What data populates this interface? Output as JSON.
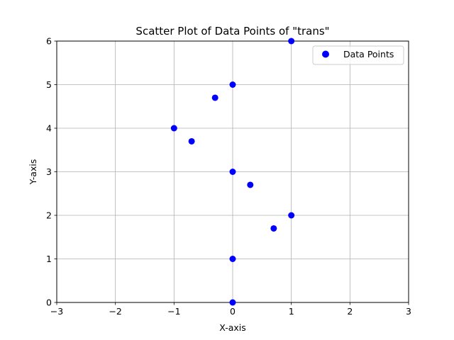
{
  "chart_data": {
    "type": "scatter",
    "title": "Scatter Plot of Data Points of \"trans\"",
    "xlabel": "X-axis",
    "ylabel": "Y-axis",
    "xlim": [
      -3,
      3
    ],
    "ylim": [
      0,
      6
    ],
    "xticks": [
      -3,
      -2,
      -1,
      0,
      1,
      2,
      3
    ],
    "xtick_labels": [
      "−3",
      "−2",
      "−1",
      "0",
      "1",
      "2",
      "3"
    ],
    "yticks": [
      0,
      1,
      2,
      3,
      4,
      5,
      6
    ],
    "ytick_labels": [
      "0",
      "1",
      "2",
      "3",
      "4",
      "5",
      "6"
    ],
    "grid": true,
    "legend_position": "top-right",
    "series": [
      {
        "name": "Data Points",
        "color": "#0000ff",
        "points": [
          {
            "x": 0,
            "y": 0
          },
          {
            "x": 0,
            "y": 1
          },
          {
            "x": 0.7,
            "y": 1.7
          },
          {
            "x": 1,
            "y": 2
          },
          {
            "x": 0.3,
            "y": 2.7
          },
          {
            "x": 0,
            "y": 3
          },
          {
            "x": -0.7,
            "y": 3.7
          },
          {
            "x": -1,
            "y": 4
          },
          {
            "x": -0.3,
            "y": 4.7
          },
          {
            "x": 0,
            "y": 5
          },
          {
            "x": 1,
            "y": 6
          }
        ]
      }
    ]
  }
}
